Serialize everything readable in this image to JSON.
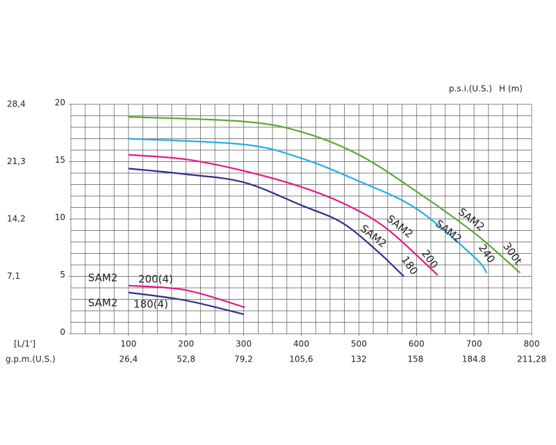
{
  "chart_data": {
    "type": "line",
    "x_axis_label": "[L/1']",
    "x2_axis_label": "g.p.m.(U.S.)",
    "y2_axis_label": "p.s.i.(U.S.)",
    "y_axis_label": "H (m)",
    "xlim": [
      0,
      800
    ],
    "xticks": [
      100,
      200,
      300,
      400,
      500,
      600,
      700,
      800
    ],
    "x2lim": [
      0,
      211.28
    ],
    "x2ticks": [
      {
        "value": 26.4,
        "label": "26,4"
      },
      {
        "value": 52.8,
        "label": "52,8"
      },
      {
        "value": 79.2,
        "label": "79,2"
      },
      {
        "value": 105.6,
        "label": "105,6"
      },
      132,
      158,
      184.8,
      {
        "value": 211.28,
        "label": "211,28"
      }
    ],
    "ylim": [
      0,
      20
    ],
    "yticks": [
      0,
      5,
      10,
      15,
      20
    ],
    "y2lim": [
      0,
      28.4
    ],
    "y2ticks": [
      {
        "value": 7.1,
        "label": "7,1"
      },
      {
        "value": 14.2,
        "label": "14,2"
      },
      {
        "value": 21.3,
        "label": "21,3"
      },
      {
        "value": 28.4,
        "label": "28,4"
      }
    ],
    "grid": true,
    "x_grid_step": 25,
    "y_grid_step": 1,
    "series": [
      {
        "name": "SAM2",
        "size": "300t",
        "color": "#5aa832",
        "x": [
          100,
          300,
          400,
          500,
          600,
          700,
          780
        ],
        "values": [
          18.9,
          18.5,
          17.6,
          15.6,
          12.4,
          8.8,
          5.3
        ]
      },
      {
        "name": "SAM2",
        "size": "240",
        "color": "#22aee6",
        "x": [
          100,
          300,
          400,
          500,
          600,
          700,
          722
        ],
        "values": [
          17.0,
          16.5,
          15.3,
          13.3,
          10.9,
          6.7,
          5.3
        ]
      },
      {
        "name": "SAM2",
        "size": "200",
        "color": "#e6197f",
        "x": [
          100,
          200,
          300,
          400,
          480,
          550,
          637
        ],
        "values": [
          15.6,
          15.2,
          14.2,
          12.8,
          11.2,
          9.1,
          5.1
        ]
      },
      {
        "name": "SAM2",
        "size": "180",
        "color": "#2e2f8a",
        "x": [
          100,
          200,
          300,
          400,
          470,
          530,
          578
        ],
        "values": [
          14.4,
          13.9,
          13.2,
          11.2,
          9.7,
          7.3,
          5.0
        ]
      },
      {
        "name": "SAM2",
        "size": "200(4)",
        "color": "#e6197f",
        "x": [
          100,
          200,
          302
        ],
        "values": [
          4.2,
          3.8,
          2.3
        ]
      },
      {
        "name": "SAM2",
        "size": "180(4)",
        "color": "#2e2f8a",
        "x": [
          100,
          200,
          300
        ],
        "values": [
          3.6,
          2.9,
          1.7
        ]
      }
    ]
  }
}
